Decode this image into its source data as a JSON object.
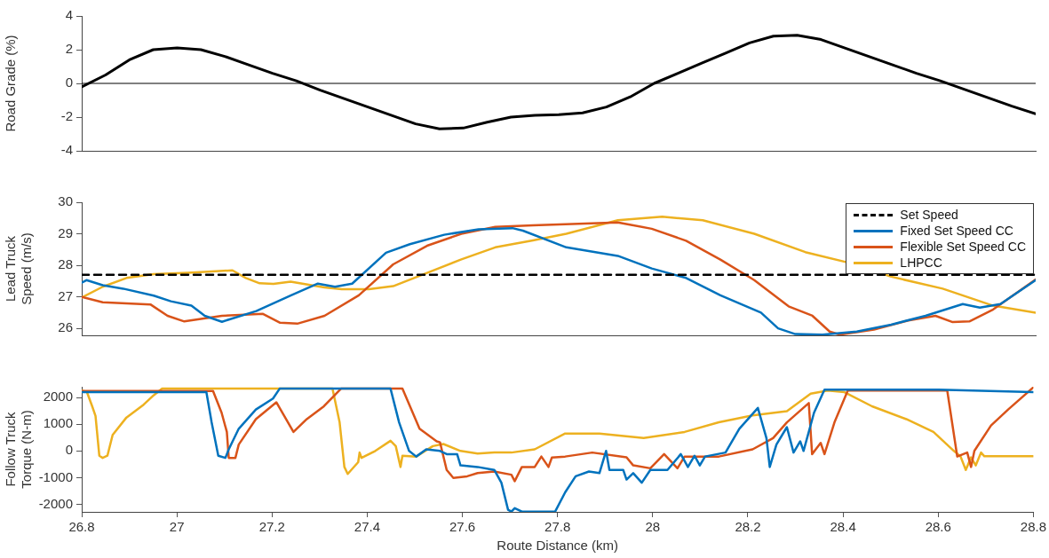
{
  "chart_data": [
    {
      "type": "line",
      "ylabel": "Road Grade (%)",
      "xlim": [
        26.8,
        28.8
      ],
      "xticks": [
        26.8,
        27,
        27.2,
        27.4,
        27.6,
        27.8,
        28,
        28.2,
        28.4,
        28.6,
        28.8
      ],
      "ylim": [
        -4,
        4
      ],
      "yticks": [
        -4,
        -2,
        0,
        2,
        4
      ],
      "tick_labels": "y",
      "marker": "none",
      "grid": false,
      "ref_lines": [
        {
          "axis": "y",
          "value": 0,
          "color": "#000000"
        }
      ],
      "series": [
        {
          "color": "#000000",
          "x": [
            26.8,
            26.85,
            26.9,
            26.95,
            27.0,
            27.05,
            27.1,
            27.15,
            27.2,
            27.25,
            27.3,
            27.35,
            27.4,
            27.45,
            27.5,
            27.55,
            27.6,
            27.65,
            27.7,
            27.75,
            27.8,
            27.85,
            27.9,
            27.95,
            28.0,
            28.05,
            28.1,
            28.15,
            28.2,
            28.25,
            28.3,
            28.35,
            28.4,
            28.45,
            28.5,
            28.55,
            28.6,
            28.65,
            28.7,
            28.75,
            28.8
          ],
          "values": [
            -0.2,
            0.5,
            1.4,
            2.0,
            2.1,
            2.0,
            1.6,
            1.1,
            0.6,
            0.15,
            -0.4,
            -0.9,
            -1.4,
            -1.9,
            -2.4,
            -2.7,
            -2.65,
            -2.3,
            -2.0,
            -1.9,
            -1.85,
            -1.75,
            -1.4,
            -0.8,
            0.0,
            0.6,
            1.2,
            1.8,
            2.4,
            2.8,
            2.85,
            2.6,
            2.1,
            1.6,
            1.1,
            0.6,
            0.15,
            -0.35,
            -0.85,
            -1.35,
            -1.8
          ]
        }
      ]
    },
    {
      "type": "line",
      "ylabel": "Lead Truck Speed (m/s)",
      "xlim": [
        26.8,
        28.8
      ],
      "xticks": [
        26.8,
        27,
        27.2,
        27.4,
        27.6,
        27.8,
        28,
        28.2,
        28.4,
        28.6,
        28.8
      ],
      "ylim": [
        25.78,
        30
      ],
      "yticks": [
        26,
        27,
        28,
        29,
        30
      ],
      "tick_labels": "y",
      "marker": "none",
      "grid": false,
      "legend": "top right",
      "series": [
        {
          "name": "Set Speed",
          "color": "#000000",
          "line_style": "dashed",
          "x": [
            26.8,
            28.8
          ],
          "values": [
            27.7,
            27.7
          ]
        },
        {
          "name": "Fixed Set Speed CC",
          "color": "#0072bd",
          "x": [
            26.8,
            26.81,
            26.844,
            26.887,
            26.951,
            26.987,
            27.03,
            27.058,
            27.094,
            27.166,
            27.238,
            27.295,
            27.331,
            27.367,
            27.438,
            27.488,
            27.56,
            27.632,
            27.703,
            27.725,
            27.816,
            27.924,
            27.995,
            28.067,
            28.139,
            28.224,
            28.26,
            28.296,
            28.353,
            28.425,
            28.497,
            28.569,
            28.647,
            28.683,
            28.726,
            28.8
          ],
          "values": [
            27.45,
            27.53,
            27.37,
            27.26,
            27.04,
            26.86,
            26.72,
            26.4,
            26.21,
            26.55,
            27.04,
            27.42,
            27.32,
            27.42,
            28.4,
            28.67,
            28.97,
            29.14,
            29.18,
            29.1,
            28.57,
            28.3,
            27.9,
            27.6,
            27.05,
            26.5,
            26.0,
            25.82,
            25.8,
            25.9,
            26.12,
            26.4,
            26.77,
            26.66,
            26.77,
            27.53
          ]
        },
        {
          "name": "Flexible Set Speed CC",
          "color": "#d95319",
          "x": [
            26.8,
            26.844,
            26.944,
            26.98,
            27.015,
            27.094,
            27.18,
            27.216,
            27.252,
            27.309,
            27.381,
            27.453,
            27.524,
            27.596,
            27.667,
            27.746,
            27.924,
            27.995,
            28.067,
            28.139,
            28.21,
            28.282,
            28.332,
            28.368,
            28.389,
            28.461,
            28.533,
            28.59,
            28.626,
            28.661,
            28.711,
            28.8
          ],
          "values": [
            27.0,
            26.83,
            26.76,
            26.4,
            26.22,
            26.4,
            26.46,
            26.18,
            26.15,
            26.4,
            27.05,
            28.03,
            28.62,
            29.0,
            29.22,
            29.27,
            29.36,
            29.16,
            28.78,
            28.18,
            27.53,
            26.7,
            26.4,
            25.9,
            25.8,
            25.96,
            26.25,
            26.4,
            26.2,
            26.22,
            26.6,
            27.55
          ]
        },
        {
          "name": "LHPCC",
          "color": "#edb120",
          "x": [
            26.8,
            26.844,
            26.894,
            26.951,
            27.023,
            27.116,
            27.144,
            27.173,
            27.202,
            27.238,
            27.309,
            27.345,
            27.402,
            27.453,
            27.524,
            27.596,
            27.667,
            27.746,
            27.816,
            27.924,
            28.017,
            28.102,
            28.21,
            28.317,
            28.425,
            28.497,
            28.605,
            28.711,
            28.8
          ],
          "values": [
            26.98,
            27.32,
            27.6,
            27.72,
            27.76,
            27.84,
            27.6,
            27.43,
            27.41,
            27.48,
            27.3,
            27.24,
            27.24,
            27.34,
            27.76,
            28.19,
            28.57,
            28.79,
            29.0,
            29.43,
            29.54,
            29.43,
            29.0,
            28.42,
            28.02,
            27.64,
            27.26,
            26.72,
            26.5
          ]
        }
      ]
    },
    {
      "type": "line",
      "ylabel": "Follow Truck Torque (N-m)",
      "xlabel": "Route Distance (km)",
      "xlim": [
        26.8,
        28.8
      ],
      "xticks": [
        26.8,
        27,
        27.2,
        27.4,
        27.6,
        27.8,
        28,
        28.2,
        28.4,
        28.6,
        28.8
      ],
      "ylim": [
        -2280,
        2400
      ],
      "yticks": [
        -2000,
        -1000,
        0,
        1000,
        2000
      ],
      "marker": "none",
      "grid": false,
      "series": [
        {
          "color": "#0072bd",
          "x": [
            26.8,
            27.062,
            27.073,
            27.087,
            27.102,
            27.109,
            27.13,
            27.166,
            27.202,
            27.216,
            27.449,
            27.467,
            27.488,
            27.503,
            27.524,
            27.553,
            27.567,
            27.589,
            27.596,
            27.632,
            27.667,
            27.682,
            27.696,
            27.703,
            27.71,
            27.725,
            27.795,
            27.816,
            27.838,
            27.866,
            27.888,
            27.902,
            27.909,
            27.938,
            27.945,
            27.959,
            27.977,
            27.995,
            28.031,
            28.059,
            28.074,
            28.088,
            28.099,
            28.11,
            28.153,
            28.182,
            28.221,
            28.239,
            28.246,
            28.26,
            28.282,
            28.296,
            28.31,
            28.317,
            28.339,
            28.361,
            28.425,
            28.6,
            28.8
          ],
          "values": [
            2200,
            2200,
            1070,
            -180,
            -260,
            60,
            830,
            1550,
            1960,
            2330,
            2330,
            1070,
            0,
            -210,
            60,
            0,
            -120,
            -120,
            -540,
            -600,
            -710,
            -1190,
            -2200,
            -2270,
            -2140,
            -2270,
            -2270,
            -1550,
            -950,
            -770,
            -830,
            0,
            -710,
            -710,
            -1070,
            -830,
            -1190,
            -710,
            -710,
            -120,
            -600,
            -180,
            -540,
            -210,
            -60,
            830,
            1610,
            480,
            -600,
            240,
            890,
            -60,
            360,
            0,
            1430,
            2290,
            2290,
            2290,
            2200
          ]
        },
        {
          "color": "#d95319",
          "x": [
            26.8,
            27.076,
            27.094,
            27.105,
            27.109,
            27.123,
            27.13,
            27.166,
            27.209,
            27.245,
            27.273,
            27.309,
            27.345,
            27.474,
            27.51,
            27.546,
            27.553,
            27.567,
            27.581,
            27.61,
            27.632,
            27.667,
            27.703,
            27.71,
            27.725,
            27.752,
            27.766,
            27.781,
            27.788,
            27.816,
            27.873,
            27.945,
            27.959,
            27.995,
            28.024,
            28.052,
            28.067,
            28.139,
            28.21,
            28.253,
            28.282,
            28.328,
            28.335,
            28.353,
            28.361,
            28.382,
            28.41,
            28.619,
            28.64,
            28.661,
            28.669,
            28.676,
            28.711,
            28.747,
            28.8
          ],
          "values": [
            2240,
            2240,
            1430,
            710,
            -260,
            -260,
            240,
            1190,
            1820,
            710,
            1190,
            1670,
            2330,
            2330,
            830,
            360,
            320,
            -710,
            -1010,
            -950,
            -830,
            -770,
            -890,
            -1130,
            -600,
            -600,
            -210,
            -600,
            -250,
            -210,
            -60,
            -240,
            -540,
            -650,
            -120,
            -650,
            -210,
            -210,
            60,
            480,
            1070,
            1790,
            -120,
            300,
            -120,
            1070,
            2260,
            2260,
            -210,
            -60,
            -600,
            0,
            950,
            1550,
            2380
          ]
        },
        {
          "color": "#edb120",
          "x": [
            26.8,
            26.811,
            26.822,
            26.829,
            26.837,
            26.844,
            26.854,
            26.865,
            26.894,
            26.93,
            26.951,
            26.969,
            27.327,
            27.342,
            27.352,
            27.359,
            27.381,
            27.384,
            27.388,
            27.417,
            27.449,
            27.46,
            27.47,
            27.474,
            27.503,
            27.538,
            27.56,
            27.596,
            27.632,
            27.667,
            27.703,
            27.752,
            27.816,
            27.888,
            27.981,
            28.067,
            28.139,
            28.21,
            28.282,
            28.332,
            28.368,
            28.403,
            28.461,
            28.533,
            28.59,
            28.633,
            28.647,
            28.658,
            28.669,
            28.679,
            28.69,
            28.697,
            28.8
          ],
          "values": [
            2260,
            2200,
            1670,
            1310,
            -180,
            -260,
            -180,
            600,
            1250,
            1730,
            2080,
            2330,
            2330,
            1070,
            -600,
            -860,
            -420,
            -60,
            -260,
            0,
            380,
            180,
            -600,
            -180,
            -210,
            180,
            260,
            0,
            -95,
            -60,
            -60,
            60,
            650,
            650,
            480,
            710,
            1070,
            1330,
            1490,
            2140,
            2260,
            2200,
            1670,
            1190,
            710,
            0,
            -210,
            -710,
            -240,
            -540,
            -60,
            -200,
            -200
          ]
        }
      ]
    }
  ]
}
